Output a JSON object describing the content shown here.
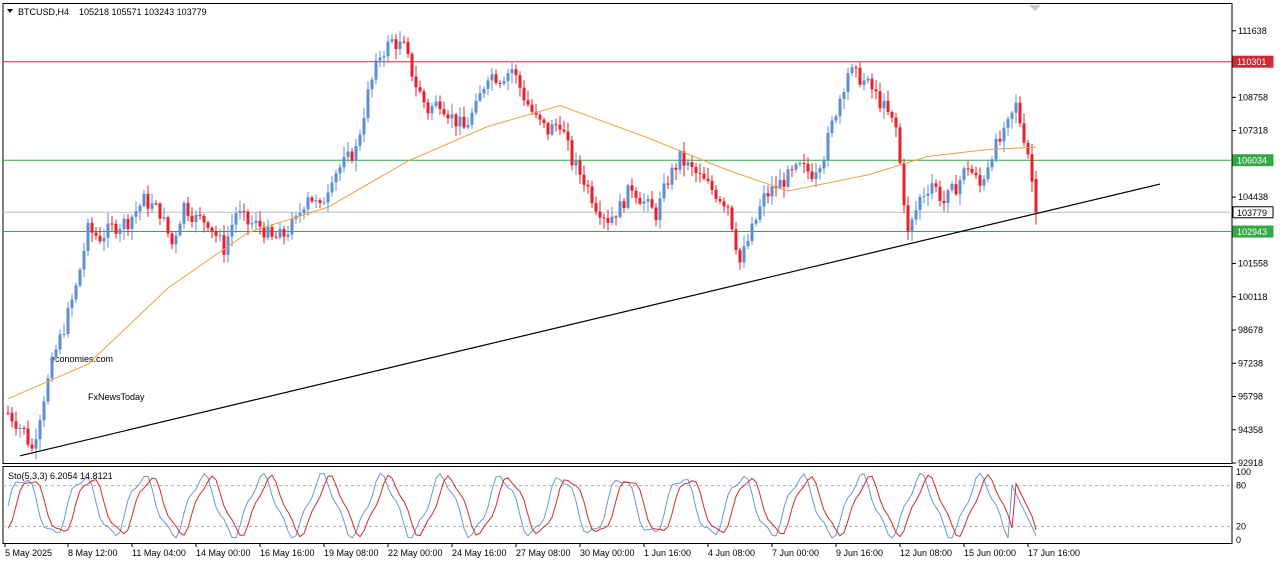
{
  "header": {
    "symbol_label": "BTCUSD,H4",
    "ohlc": "105218 105571 103243 103779"
  },
  "watermark": {
    "line1": "economies.com",
    "line2": "FxNewsToday"
  },
  "colors": {
    "bull": "#5b8fd6",
    "bear": "#e8202a",
    "ma": "#f0a040",
    "resistance": "#cc2a36",
    "support": "#33a845",
    "current": "#c0c0c0",
    "trendline": "#000000",
    "stoch_main": "#6a98d8",
    "stoch_signal": "#d62a2a"
  },
  "chart_data": {
    "type": "candlestick",
    "symbol": "BTCUSD",
    "timeframe": "H4",
    "y_ticks": [
      111638,
      110198,
      108758,
      107318,
      105878,
      104438,
      102998,
      101558,
      100118,
      98678,
      97238,
      95798,
      94358,
      92918
    ],
    "y_tick_labels": [
      "111638",
      "",
      "108758",
      "107318",
      "",
      "104438",
      "",
      "101558",
      "100118",
      "98678",
      "97238",
      "95798",
      "94358",
      "92918"
    ],
    "ylim": [
      92918,
      112800
    ],
    "x_labels": [
      "5 May 2025",
      "8 May 12:00",
      "11 May 04:00",
      "14 May 00:00",
      "16 May 16:00",
      "19 May 08:00",
      "22 May 00:00",
      "24 May 16:00",
      "27 May 08:00",
      "30 May 00:00",
      "1 Jun 16:00",
      "4 Jun 08:00",
      "7 Jun 00:00",
      "9 Jun 16:00",
      "12 Jun 08:00",
      "15 Jun 00:00",
      "17 Jun 16:00"
    ],
    "price_lines": [
      {
        "name": "resistance",
        "value": 110301,
        "label": "110301"
      },
      {
        "name": "support-upper",
        "value": 106034,
        "label": "106034"
      },
      {
        "name": "current",
        "value": 103779,
        "label": "103779"
      },
      {
        "name": "support-lower",
        "value": 102943,
        "label": "102943"
      }
    ],
    "trendline": {
      "from": {
        "bar": 3,
        "price": 93230
      },
      "to": {
        "bar": 288,
        "price": 105000
      }
    },
    "price_path": [
      [
        0,
        95100
      ],
      [
        4,
        94300
      ],
      [
        6,
        93500
      ],
      [
        9,
        95800
      ],
      [
        12,
        97800
      ],
      [
        14,
        98800
      ],
      [
        17,
        100500
      ],
      [
        20,
        103000
      ],
      [
        23,
        102700
      ],
      [
        26,
        103100
      ],
      [
        30,
        103400
      ],
      [
        34,
        104300
      ],
      [
        38,
        103800
      ],
      [
        41,
        102400
      ],
      [
        44,
        104100
      ],
      [
        47,
        103500
      ],
      [
        50,
        103400
      ],
      [
        54,
        102200
      ],
      [
        57,
        103800
      ],
      [
        60,
        103300
      ],
      [
        63,
        103200
      ],
      [
        66,
        102600
      ],
      [
        69,
        102800
      ],
      [
        72,
        103400
      ],
      [
        75,
        104600
      ],
      [
        78,
        103900
      ],
      [
        81,
        105400
      ],
      [
        84,
        105900
      ],
      [
        87,
        106500
      ],
      [
        90,
        108900
      ],
      [
        93,
        110600
      ],
      [
        96,
        111200
      ],
      [
        99,
        110900
      ],
      [
        102,
        109300
      ],
      [
        105,
        108200
      ],
      [
        108,
        108600
      ],
      [
        111,
        107900
      ],
      [
        114,
        107400
      ],
      [
        117,
        108300
      ],
      [
        120,
        109800
      ],
      [
        123,
        109600
      ],
      [
        126,
        110000
      ],
      [
        129,
        108800
      ],
      [
        132,
        107800
      ],
      [
        135,
        107300
      ],
      [
        138,
        107700
      ],
      [
        141,
        106000
      ],
      [
        144,
        105200
      ],
      [
        147,
        104100
      ],
      [
        150,
        103500
      ],
      [
        153,
        104000
      ],
      [
        156,
        104900
      ],
      [
        159,
        104200
      ],
      [
        162,
        103700
      ],
      [
        165,
        105200
      ],
      [
        168,
        106100
      ],
      [
        171,
        105600
      ],
      [
        174,
        105100
      ],
      [
        177,
        104600
      ],
      [
        180,
        104100
      ],
      [
        183,
        101600
      ],
      [
        186,
        103000
      ],
      [
        189,
        104400
      ],
      [
        192,
        104900
      ],
      [
        195,
        105300
      ],
      [
        198,
        105700
      ],
      [
        201,
        105500
      ],
      [
        204,
        106300
      ],
      [
        207,
        108200
      ],
      [
        210,
        109900
      ],
      [
        213,
        109600
      ],
      [
        216,
        109100
      ],
      [
        219,
        108300
      ],
      [
        222,
        107400
      ],
      [
        225,
        102800
      ],
      [
        228,
        104400
      ],
      [
        231,
        105100
      ],
      [
        234,
        104200
      ],
      [
        237,
        104900
      ],
      [
        240,
        105800
      ],
      [
        243,
        104900
      ],
      [
        246,
        106400
      ],
      [
        249,
        107100
      ],
      [
        252,
        108400
      ],
      [
        255,
        106400
      ],
      [
        257,
        103800
      ]
    ],
    "ma_path": [
      [
        0,
        95700
      ],
      [
        20,
        97200
      ],
      [
        40,
        100500
      ],
      [
        60,
        102900
      ],
      [
        80,
        104000
      ],
      [
        100,
        106000
      ],
      [
        120,
        107500
      ],
      [
        138,
        108400
      ],
      [
        160,
        107000
      ],
      [
        180,
        105600
      ],
      [
        195,
        104700
      ],
      [
        215,
        105400
      ],
      [
        230,
        106200
      ],
      [
        245,
        106500
      ],
      [
        257,
        106600
      ]
    ],
    "stochastic": {
      "label": "Sto(5,3,3) 6.2054 14.8121",
      "main": 6.2054,
      "signal": 14.8121,
      "levels": [
        20,
        80
      ],
      "axis_labels": [
        "100",
        "80",
        "20",
        "0"
      ],
      "ylim": [
        0,
        100
      ]
    }
  }
}
